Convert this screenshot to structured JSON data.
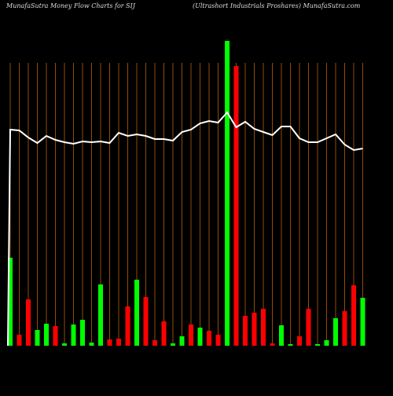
{
  "chart_data": {
    "type": "bar",
    "title": "MunafaSutra  Money Flow  Charts for SIJ",
    "subtitle": "(Ultrashort Industrials Proshares) MunafaSutra.com",
    "categories": [
      null,
      null,
      null,
      null,
      null,
      null,
      null,
      null,
      null,
      null,
      null,
      null,
      null,
      null,
      null,
      null,
      null,
      null,
      null,
      null,
      null,
      null,
      null,
      null,
      null,
      null,
      null,
      null,
      null,
      null,
      null,
      null,
      null,
      null,
      null,
      null,
      null,
      null,
      null,
      null
    ],
    "ylim": [
      0,
      400
    ],
    "series": [
      {
        "values": [
          112,
          14,
          59,
          20,
          28,
          25,
          3,
          27,
          33,
          4,
          78,
          8,
          9,
          50,
          84,
          62,
          7,
          31,
          3,
          12,
          27,
          23,
          19,
          14,
          388,
          356,
          38,
          42,
          47,
          3,
          26,
          2,
          12,
          47,
          2,
          7,
          35,
          44,
          77,
          61
        ],
        "colors": [
          "#00ff00",
          "#ff0000",
          "#ff0000",
          "#00ff00",
          "#00ff00",
          "#ff0000",
          "#00ff00",
          "#00ff00",
          "#00ff00",
          "#00ff00",
          "#00ff00",
          "#ff0000",
          "#ff0000",
          "#ff0000",
          "#00ff00",
          "#ff0000",
          "#ff0000",
          "#ff0000",
          "#00ff00",
          "#00ff00",
          "#ff0000",
          "#00ff00",
          "#ff0000",
          "#ff0000",
          "#00ff00",
          "#ff0000",
          "#ff0000",
          "#ff0000",
          "#ff0000",
          "#ff0000",
          "#00ff00",
          "#00ff00",
          "#ff0000",
          "#ff0000",
          "#00ff00",
          "#00ff00",
          "#00ff00",
          "#ff0000",
          "#ff0000",
          "#00ff00"
        ]
      },
      {
        "type": "line",
        "color": "#ffffff",
        "values": [
          275,
          274,
          265,
          258,
          267,
          262,
          259,
          257,
          260,
          259,
          260,
          258,
          271,
          267,
          269,
          267,
          263,
          263,
          261,
          272,
          275,
          283,
          286,
          284,
          297,
          278,
          285,
          276,
          272,
          268,
          279,
          279,
          264,
          259,
          259,
          264,
          269,
          256,
          249,
          251
        ]
      }
    ],
    "gridline_color": "#b8600b"
  }
}
